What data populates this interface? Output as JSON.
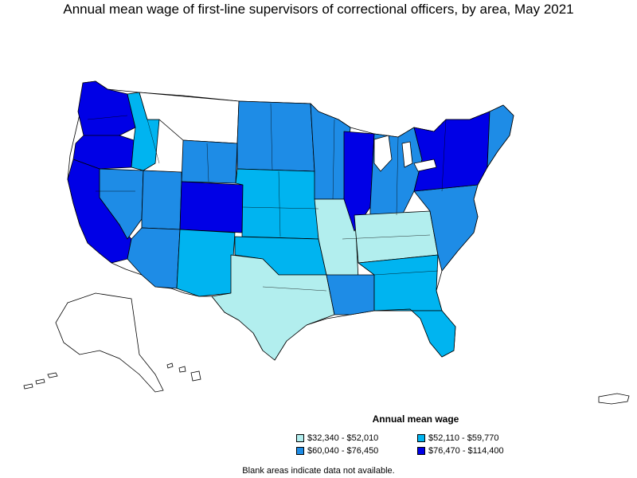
{
  "title": "Annual mean wage of first-line supervisors of correctional officers, by area, May 2021",
  "legend": {
    "title": "Annual mean wage",
    "items": [
      {
        "label": "$32,340 - $52,010",
        "color": "#b2eeee"
      },
      {
        "label": "$52,110 - $59,770",
        "color": "#00b4f0"
      },
      {
        "label": "$60,040 - $76,450",
        "color": "#1e8ce6"
      },
      {
        "label": "$76,470 - $114,400",
        "color": "#0000e6"
      }
    ]
  },
  "note": "Blank areas indicate data not available.",
  "colors": {
    "outline": "#000000",
    "blank": "#ffffff"
  }
}
